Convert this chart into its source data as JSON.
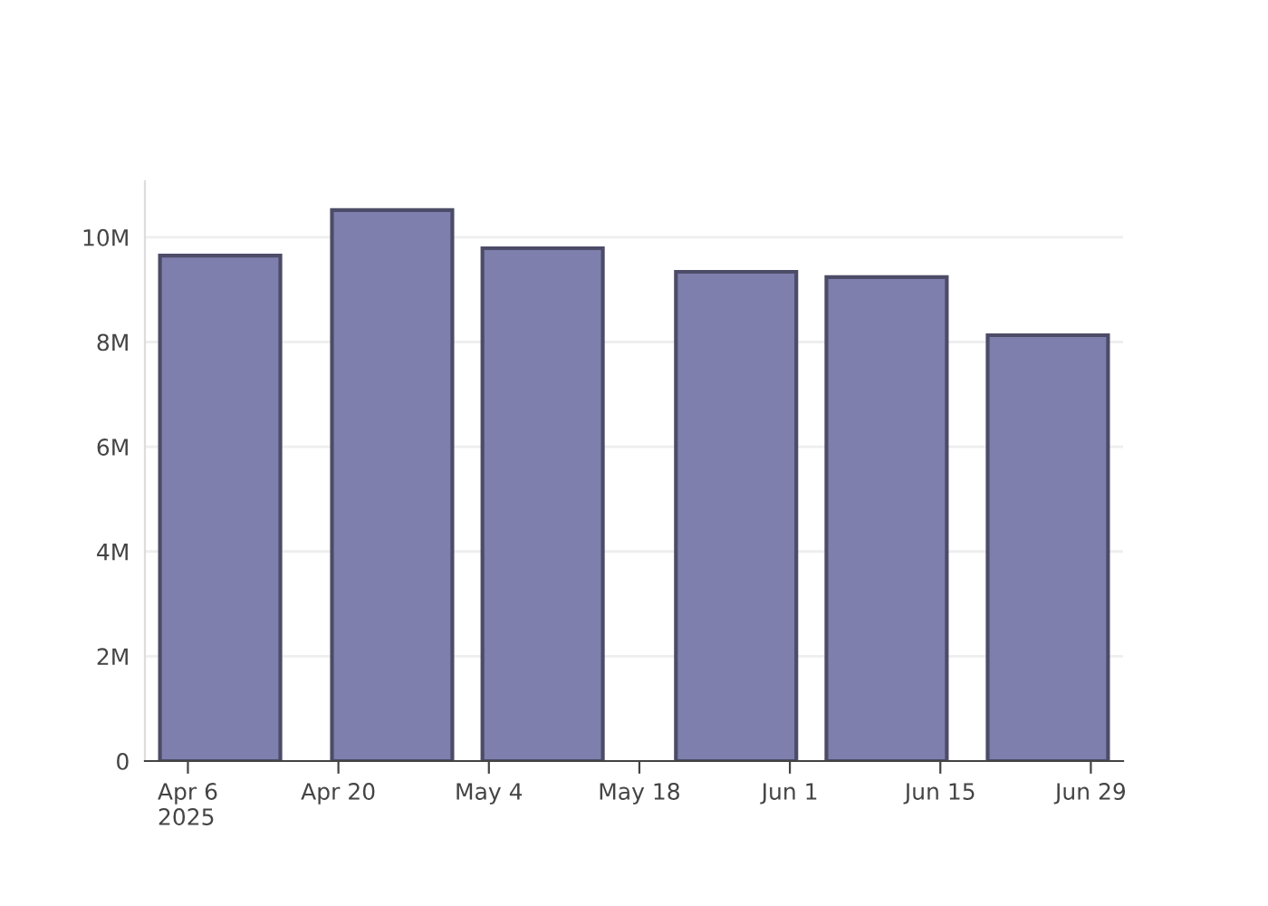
{
  "chart_data": {
    "type": "bar",
    "x": [
      "2025-04-09",
      "2025-04-25",
      "2025-05-09",
      "2025-05-27",
      "2025-06-10",
      "2025-06-25"
    ],
    "values": [
      9650000,
      10520000,
      9790000,
      9340000,
      9240000,
      8130000
    ],
    "color": "#7f7fae",
    "xlim": [
      "2025-04-02",
      "2025-07-02"
    ],
    "xticks": [
      {
        "value": "2025-04-06",
        "label": "Apr 6\n2025"
      },
      {
        "value": "2025-04-20",
        "label": "Apr 20"
      },
      {
        "value": "2025-05-04",
        "label": "May 4"
      },
      {
        "value": "2025-05-18",
        "label": "May 18"
      },
      {
        "value": "2025-06-01",
        "label": "Jun 1"
      },
      {
        "value": "2025-06-15",
        "label": "Jun 15"
      },
      {
        "value": "2025-06-29",
        "label": "Jun 29"
      }
    ],
    "ylim": [
      0,
      11070000
    ],
    "yticks": [
      0,
      {
        "value": 2000000,
        "label": "2M"
      },
      {
        "value": 4000000,
        "label": "4M"
      },
      {
        "value": 6000000,
        "label": "6M"
      },
      {
        "value": 8000000,
        "label": "8M"
      },
      {
        "value": 10000000,
        "label": "10M"
      }
    ],
    "grid": "y"
  }
}
